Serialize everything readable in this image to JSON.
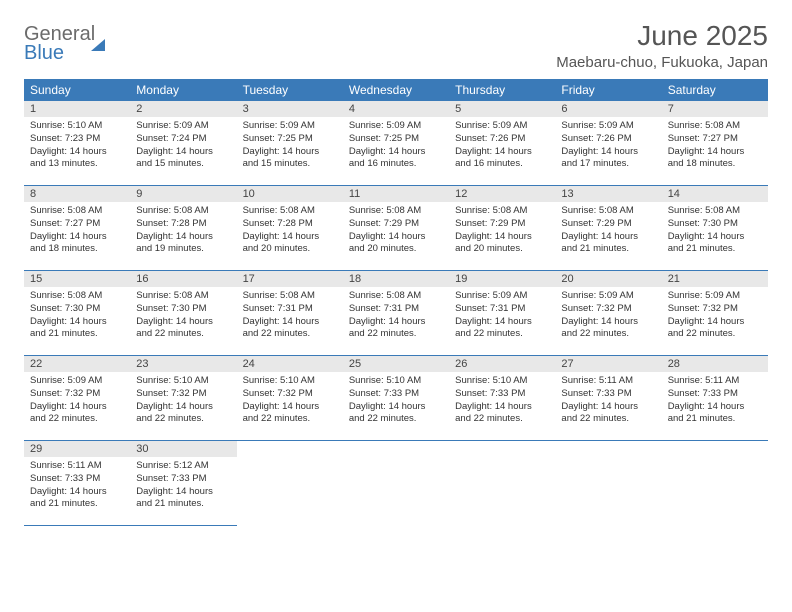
{
  "brand": {
    "part1": "General",
    "part2": "Blue"
  },
  "title": "June 2025",
  "location": "Maebaru-chuo, Fukuoka, Japan",
  "colors": {
    "accent": "#3a7ab8",
    "header_bg": "#3a7ab8",
    "daynum_bg": "#e8e8e8"
  },
  "weekdays": [
    "Sunday",
    "Monday",
    "Tuesday",
    "Wednesday",
    "Thursday",
    "Friday",
    "Saturday"
  ],
  "days": [
    {
      "n": "1",
      "sr": "5:10 AM",
      "ss": "7:23 PM",
      "dl": "14 hours and 13 minutes."
    },
    {
      "n": "2",
      "sr": "5:09 AM",
      "ss": "7:24 PM",
      "dl": "14 hours and 15 minutes."
    },
    {
      "n": "3",
      "sr": "5:09 AM",
      "ss": "7:25 PM",
      "dl": "14 hours and 15 minutes."
    },
    {
      "n": "4",
      "sr": "5:09 AM",
      "ss": "7:25 PM",
      "dl": "14 hours and 16 minutes."
    },
    {
      "n": "5",
      "sr": "5:09 AM",
      "ss": "7:26 PM",
      "dl": "14 hours and 16 minutes."
    },
    {
      "n": "6",
      "sr": "5:09 AM",
      "ss": "7:26 PM",
      "dl": "14 hours and 17 minutes."
    },
    {
      "n": "7",
      "sr": "5:08 AM",
      "ss": "7:27 PM",
      "dl": "14 hours and 18 minutes."
    },
    {
      "n": "8",
      "sr": "5:08 AM",
      "ss": "7:27 PM",
      "dl": "14 hours and 18 minutes."
    },
    {
      "n": "9",
      "sr": "5:08 AM",
      "ss": "7:28 PM",
      "dl": "14 hours and 19 minutes."
    },
    {
      "n": "10",
      "sr": "5:08 AM",
      "ss": "7:28 PM",
      "dl": "14 hours and 20 minutes."
    },
    {
      "n": "11",
      "sr": "5:08 AM",
      "ss": "7:29 PM",
      "dl": "14 hours and 20 minutes."
    },
    {
      "n": "12",
      "sr": "5:08 AM",
      "ss": "7:29 PM",
      "dl": "14 hours and 20 minutes."
    },
    {
      "n": "13",
      "sr": "5:08 AM",
      "ss": "7:29 PM",
      "dl": "14 hours and 21 minutes."
    },
    {
      "n": "14",
      "sr": "5:08 AM",
      "ss": "7:30 PM",
      "dl": "14 hours and 21 minutes."
    },
    {
      "n": "15",
      "sr": "5:08 AM",
      "ss": "7:30 PM",
      "dl": "14 hours and 21 minutes."
    },
    {
      "n": "16",
      "sr": "5:08 AM",
      "ss": "7:30 PM",
      "dl": "14 hours and 22 minutes."
    },
    {
      "n": "17",
      "sr": "5:08 AM",
      "ss": "7:31 PM",
      "dl": "14 hours and 22 minutes."
    },
    {
      "n": "18",
      "sr": "5:08 AM",
      "ss": "7:31 PM",
      "dl": "14 hours and 22 minutes."
    },
    {
      "n": "19",
      "sr": "5:09 AM",
      "ss": "7:31 PM",
      "dl": "14 hours and 22 minutes."
    },
    {
      "n": "20",
      "sr": "5:09 AM",
      "ss": "7:32 PM",
      "dl": "14 hours and 22 minutes."
    },
    {
      "n": "21",
      "sr": "5:09 AM",
      "ss": "7:32 PM",
      "dl": "14 hours and 22 minutes."
    },
    {
      "n": "22",
      "sr": "5:09 AM",
      "ss": "7:32 PM",
      "dl": "14 hours and 22 minutes."
    },
    {
      "n": "23",
      "sr": "5:10 AM",
      "ss": "7:32 PM",
      "dl": "14 hours and 22 minutes."
    },
    {
      "n": "24",
      "sr": "5:10 AM",
      "ss": "7:32 PM",
      "dl": "14 hours and 22 minutes."
    },
    {
      "n": "25",
      "sr": "5:10 AM",
      "ss": "7:33 PM",
      "dl": "14 hours and 22 minutes."
    },
    {
      "n": "26",
      "sr": "5:10 AM",
      "ss": "7:33 PM",
      "dl": "14 hours and 22 minutes."
    },
    {
      "n": "27",
      "sr": "5:11 AM",
      "ss": "7:33 PM",
      "dl": "14 hours and 22 minutes."
    },
    {
      "n": "28",
      "sr": "5:11 AM",
      "ss": "7:33 PM",
      "dl": "14 hours and 21 minutes."
    },
    {
      "n": "29",
      "sr": "5:11 AM",
      "ss": "7:33 PM",
      "dl": "14 hours and 21 minutes."
    },
    {
      "n": "30",
      "sr": "5:12 AM",
      "ss": "7:33 PM",
      "dl": "14 hours and 21 minutes."
    }
  ],
  "labels": {
    "sunrise": "Sunrise: ",
    "sunset": "Sunset: ",
    "daylight": "Daylight: "
  },
  "layout": {
    "first_weekday_index": 0,
    "cols": 7,
    "rows": 5
  }
}
